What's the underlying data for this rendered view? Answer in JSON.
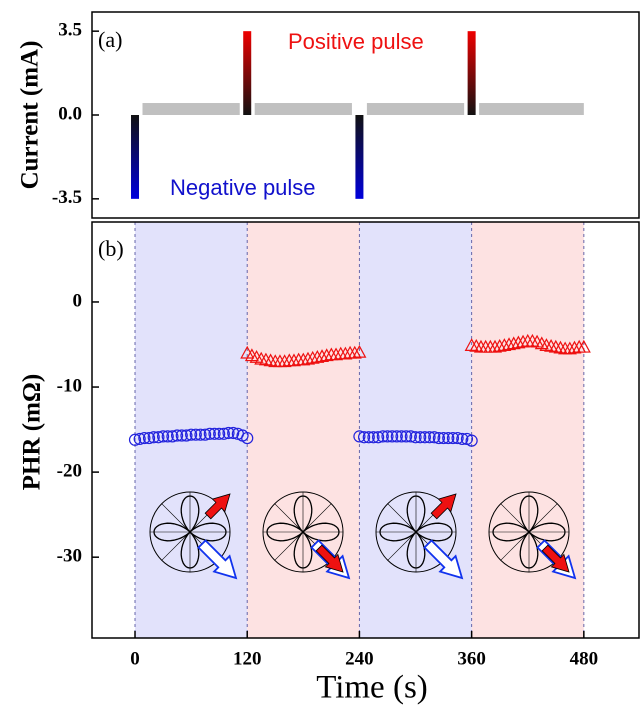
{
  "chart_data": [
    {
      "type": "pulse",
      "panel_label": "(a)",
      "ylabel": "Current (mA)",
      "annotations": [
        "Positive pulse",
        "Negative pulse"
      ],
      "annotation_colors": [
        "#ee1111",
        "#1111cc"
      ],
      "xlim": [
        -46,
        539
      ],
      "ylim": [
        -4.3,
        4.3
      ],
      "yticks": [
        3.5,
        {
          "value": 0,
          "label": "0.0"
        },
        -3.5
      ],
      "series": [
        {
          "color": "#0000dd",
          "x": [
            0,
            240
          ],
          "values": [
            -3.5,
            -3.5
          ]
        },
        {
          "color": "#ee0000",
          "x": [
            120,
            360
          ],
          "values": [
            3.5,
            3.5
          ]
        }
      ],
      "baseline": {
        "color": "#c0c0c0",
        "starts": [
          8,
          128,
          248,
          368
        ],
        "ends": [
          112,
          232,
          352,
          480
        ],
        "level": 0.5
      }
    },
    {
      "type": "scatter",
      "panel_label": "(b)",
      "ylabel": "PHR (mΩ)",
      "xlabel": "Time (s)",
      "xlim": [
        -46,
        539
      ],
      "ylim": [
        -39.5,
        9.4
      ],
      "xticks": [
        0,
        120,
        240,
        360,
        480
      ],
      "yticks": [
        0,
        -10,
        -20,
        -30
      ],
      "regions": [
        {
          "start": 0,
          "end": 120,
          "color": "#e2e2fb"
        },
        {
          "start": 120,
          "end": 240,
          "color": "#fde2e2"
        },
        {
          "start": 240,
          "end": 360,
          "color": "#e2e2fb"
        },
        {
          "start": 360,
          "end": 480,
          "color": "#fde2e2"
        }
      ],
      "series": [
        {
          "color": "#2222dd",
          "marker": "circle",
          "x": [
            0,
            5,
            10,
            15,
            20,
            25,
            30,
            35,
            40,
            45,
            50,
            55,
            60,
            65,
            70,
            75,
            80,
            85,
            90,
            95,
            100,
            105,
            110,
            115,
            120,
            240,
            245,
            250,
            255,
            260,
            265,
            270,
            275,
            280,
            285,
            290,
            295,
            300,
            305,
            310,
            315,
            320,
            325,
            330,
            335,
            340,
            345,
            350,
            355,
            360
          ],
          "values": [
            -16.2,
            -16.1,
            -16.0,
            -16.0,
            -15.9,
            -15.9,
            -15.8,
            -15.8,
            -15.8,
            -15.7,
            -15.7,
            -15.7,
            -15.6,
            -15.6,
            -15.6,
            -15.6,
            -15.5,
            -15.5,
            -15.5,
            -15.5,
            -15.4,
            -15.4,
            -15.5,
            -15.7,
            -16.0,
            -15.8,
            -15.9,
            -15.9,
            -15.9,
            -15.9,
            -15.8,
            -15.8,
            -15.8,
            -15.8,
            -15.8,
            -15.8,
            -15.8,
            -15.9,
            -15.9,
            -15.9,
            -15.9,
            -15.9,
            -16.0,
            -16.0,
            -16.0,
            -16.0,
            -16.0,
            -16.1,
            -16.1,
            -16.3
          ]
        },
        {
          "color": "#ee1111",
          "marker": "triangle",
          "x": [
            120,
            125,
            130,
            135,
            140,
            145,
            150,
            155,
            160,
            165,
            170,
            175,
            180,
            185,
            190,
            195,
            200,
            205,
            210,
            215,
            220,
            225,
            230,
            235,
            240,
            360,
            365,
            370,
            375,
            380,
            385,
            390,
            395,
            400,
            405,
            410,
            415,
            420,
            425,
            430,
            435,
            440,
            445,
            450,
            455,
            460,
            465,
            470,
            475,
            480
          ],
          "values": [
            -6.0,
            -6.3,
            -6.5,
            -6.7,
            -6.8,
            -6.9,
            -7.0,
            -7.0,
            -7.0,
            -6.9,
            -6.9,
            -6.8,
            -6.8,
            -6.7,
            -6.6,
            -6.5,
            -6.4,
            -6.3,
            -6.2,
            -6.2,
            -6.1,
            -6.1,
            -6.0,
            -6.0,
            -5.9,
            -5.1,
            -5.2,
            -5.3,
            -5.3,
            -5.3,
            -5.3,
            -5.2,
            -5.1,
            -5.0,
            -4.9,
            -4.8,
            -4.7,
            -4.6,
            -4.6,
            -4.7,
            -4.9,
            -5.1,
            -5.2,
            -5.3,
            -5.4,
            -5.5,
            -5.5,
            -5.4,
            -5.3,
            -5.3
          ]
        }
      ]
    }
  ]
}
